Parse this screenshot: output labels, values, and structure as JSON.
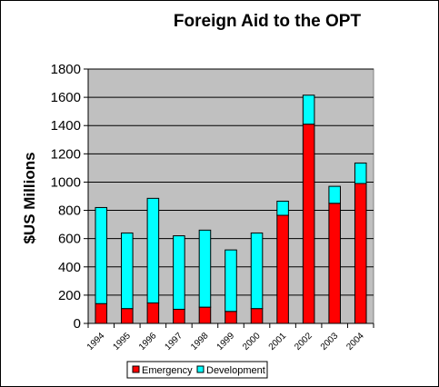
{
  "chart_data": {
    "type": "bar",
    "stacked": true,
    "title": "Foreign Aid to the OPT",
    "xlabel": "",
    "ylabel": "$US Millions",
    "ylim": [
      0,
      1800
    ],
    "yticks": [
      0,
      200,
      400,
      600,
      800,
      1000,
      1200,
      1400,
      1600,
      1800
    ],
    "grid": true,
    "legend_position": "bottom",
    "categories": [
      "1994",
      "1995",
      "1996",
      "1997",
      "1998",
      "1999",
      "2000",
      "2001",
      "2002",
      "2003",
      "2004"
    ],
    "series": [
      {
        "name": "Emergency",
        "color": "#ff0000",
        "values": [
          140,
          105,
          145,
          100,
          115,
          85,
          105,
          765,
          1410,
          850,
          990
        ]
      },
      {
        "name": "Development",
        "color": "#00ffff",
        "values": [
          680,
          535,
          740,
          520,
          545,
          435,
          535,
          100,
          205,
          120,
          145
        ]
      }
    ],
    "plot_background": "#c0c0c0"
  }
}
